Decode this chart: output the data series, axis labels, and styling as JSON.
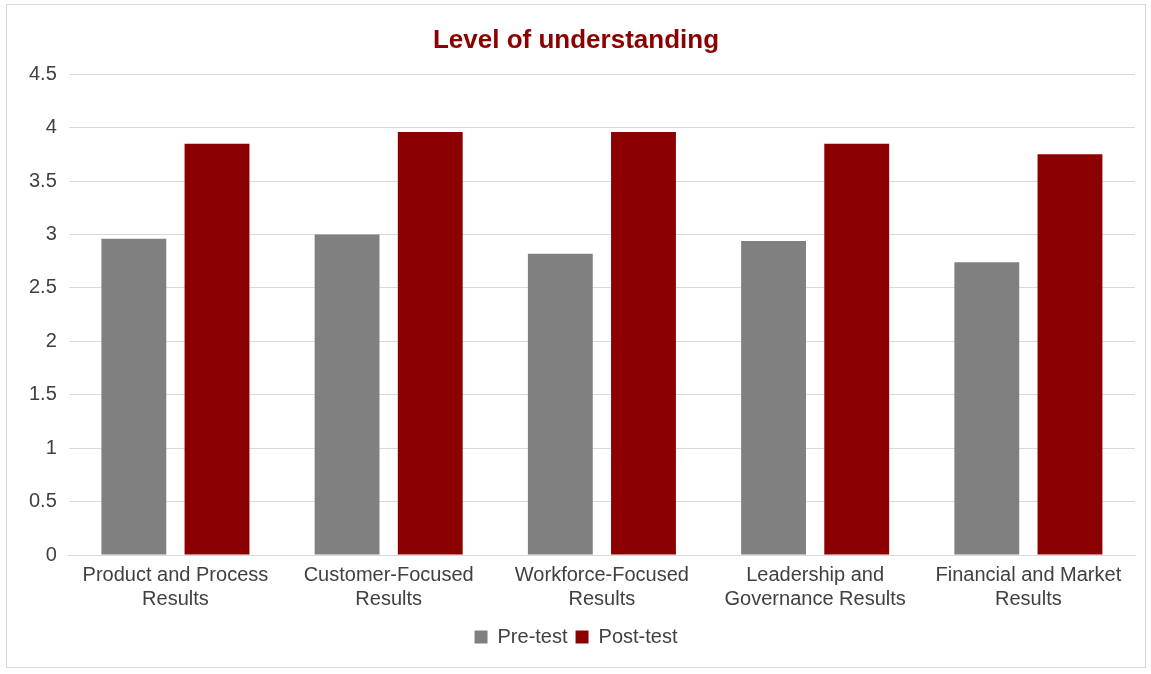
{
  "chart_data": {
    "type": "bar",
    "title": "Level of understanding",
    "categories": [
      "Product and Process Results",
      "Customer-Focused Results",
      "Workforce-Focused Results",
      "Leadership and Governance Results",
      "Financial and Market Results"
    ],
    "series": [
      {
        "name": "Pre-test",
        "color": "#808080",
        "values": [
          2.96,
          3.0,
          2.82,
          2.94,
          2.74
        ]
      },
      {
        "name": "Post-test",
        "color": "#8b0000",
        "values": [
          3.85,
          3.96,
          3.96,
          3.85,
          3.75
        ]
      }
    ],
    "ylim": [
      0,
      4.5
    ],
    "yticks": [
      0,
      0.5,
      1,
      1.5,
      2,
      2.5,
      3,
      3.5,
      4,
      4.5
    ],
    "grid": "y",
    "legend": "bottom"
  }
}
